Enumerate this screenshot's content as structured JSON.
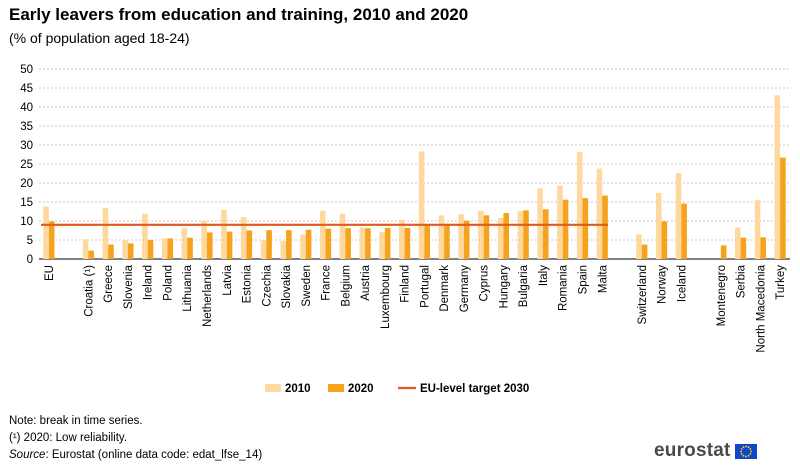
{
  "header": {
    "title": "Early leavers from education and training, 2010 and 2020",
    "subtitle": "(% of population aged 18-24)"
  },
  "chart_data": {
    "type": "bar",
    "ylim": [
      0,
      50
    ],
    "yticks": [
      0,
      5,
      10,
      15,
      20,
      25,
      30,
      35,
      40,
      45,
      50
    ],
    "grid": true,
    "legend_position": "bottom",
    "categories": [
      "EU",
      "",
      "Croatia (¹)",
      "Greece",
      "Slovenia",
      "Ireland",
      "Poland",
      "Lithuania",
      "Netherlands",
      "Latvia",
      "Estonia",
      "Czechia",
      "Slovakia",
      "Sweden",
      "France",
      "Belgium",
      "Austria",
      "Luxembourg",
      "Finland",
      "Portugal",
      "Denmark",
      "Germany",
      "Cyprus",
      "Hungary",
      "Bulgaria",
      "Italy",
      "Romania",
      "Spain",
      "Malta",
      "",
      "Switzerland",
      "Norway",
      "Iceland",
      "",
      "Montenegro",
      "Serbia",
      "North Macedonia",
      "Turkey"
    ],
    "series": [
      {
        "name": "2010",
        "color": "#fdd9a0",
        "values": [
          13.8,
          null,
          5.2,
          13.5,
          5.0,
          11.9,
          5.4,
          8.1,
          10.0,
          12.9,
          11.0,
          4.9,
          4.7,
          6.5,
          12.7,
          11.9,
          8.3,
          7.1,
          10.3,
          28.3,
          11.5,
          11.8,
          12.7,
          10.8,
          12.6,
          18.6,
          19.3,
          28.2,
          23.8,
          null,
          6.5,
          17.4,
          22.6,
          null,
          null,
          8.3,
          15.5,
          43.1
        ]
      },
      {
        "name": "2020",
        "color": "#f6a21c",
        "values": [
          9.9,
          null,
          2.2,
          3.8,
          4.1,
          5.0,
          5.4,
          5.6,
          7.0,
          7.2,
          7.5,
          7.6,
          7.6,
          7.7,
          8.0,
          8.1,
          8.1,
          8.2,
          8.2,
          8.9,
          9.3,
          10.1,
          11.5,
          12.1,
          12.8,
          13.1,
          15.6,
          16.0,
          16.7,
          null,
          3.8,
          9.9,
          14.6,
          null,
          3.6,
          5.6,
          5.7,
          26.7
        ]
      }
    ],
    "target_line": {
      "name": "EU-level target 2030",
      "value": 9,
      "color": "#e05a1e",
      "from_category": 0,
      "to_category": 28
    }
  },
  "notes": {
    "note": "Note: break in time series.",
    "footnote": "(¹) 2020: Low reliability.",
    "source_label": "Source",
    "source_text": ": Eurostat (online data code: edat_lfse_14)"
  },
  "logo": {
    "text": "eurostat"
  }
}
